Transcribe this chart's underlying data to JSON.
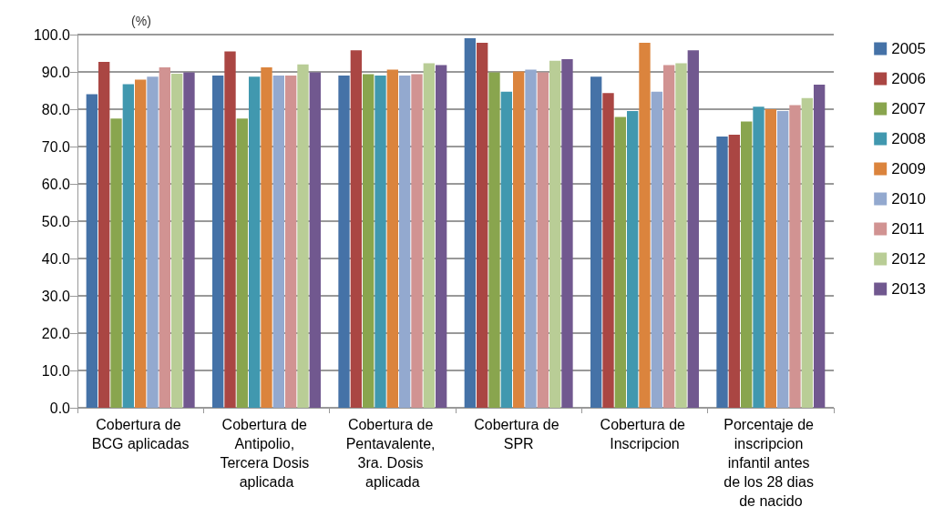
{
  "chart_data": {
    "type": "bar",
    "ylabel": "(%)",
    "categories": [
      "Cobertura de BCG aplicadas",
      "Cobertura de Antipolio, Tercera Dosis aplicada",
      "Cobertura de Pentavalente, 3ra. Dosis aplicada",
      "Cobertura de SPR",
      "Cobertura de Inscripcion",
      "Porcentaje de inscripcion infantil antes de los 28 dias de nacido"
    ],
    "series": [
      {
        "name": "2005",
        "color": "#4572a7",
        "values": [
          84.0,
          89.0,
          89.0,
          99.0,
          88.7,
          72.7
        ]
      },
      {
        "name": "2006",
        "color": "#aa4643",
        "values": [
          92.7,
          95.5,
          95.8,
          97.8,
          84.3,
          73.2
        ]
      },
      {
        "name": "2007",
        "color": "#89a54e",
        "values": [
          77.5,
          77.5,
          89.4,
          89.9,
          77.9,
          76.7
        ]
      },
      {
        "name": "2008",
        "color": "#4198af",
        "values": [
          86.7,
          88.7,
          89.0,
          84.7,
          79.5,
          80.7
        ]
      },
      {
        "name": "2009",
        "color": "#db843d",
        "values": [
          87.9,
          91.2,
          90.6,
          90.1,
          97.8,
          80.0
        ]
      },
      {
        "name": "2010",
        "color": "#93a9cf",
        "values": [
          88.7,
          89.0,
          89.0,
          90.6,
          84.7,
          79.5
        ]
      },
      {
        "name": "2011",
        "color": "#d19392",
        "values": [
          91.2,
          89.0,
          89.4,
          89.9,
          91.8,
          81.1
        ]
      },
      {
        "name": "2012",
        "color": "#b9cd96",
        "values": [
          89.5,
          92.0,
          92.3,
          93.0,
          92.3,
          83.0
        ]
      },
      {
        "name": "2013",
        "color": "#71588f",
        "values": [
          89.9,
          89.9,
          91.8,
          93.4,
          95.8,
          86.6
        ]
      }
    ],
    "ylim": [
      0,
      100
    ],
    "yticks": [
      {
        "value": 0,
        "label": "0.0"
      },
      {
        "value": 10,
        "label": "10.0"
      },
      {
        "value": 20,
        "label": "20.0"
      },
      {
        "value": 30,
        "label": "30.0"
      },
      {
        "value": 40,
        "label": "40.0"
      },
      {
        "value": 50,
        "label": "50.0"
      },
      {
        "value": 60,
        "label": "60.0"
      },
      {
        "value": 70,
        "label": "70.0"
      },
      {
        "value": 80,
        "label": "80.0"
      },
      {
        "value": 90,
        "label": "90.0"
      },
      {
        "value": 100,
        "label": "100.0"
      }
    ],
    "grid": "y",
    "legend": "right"
  }
}
